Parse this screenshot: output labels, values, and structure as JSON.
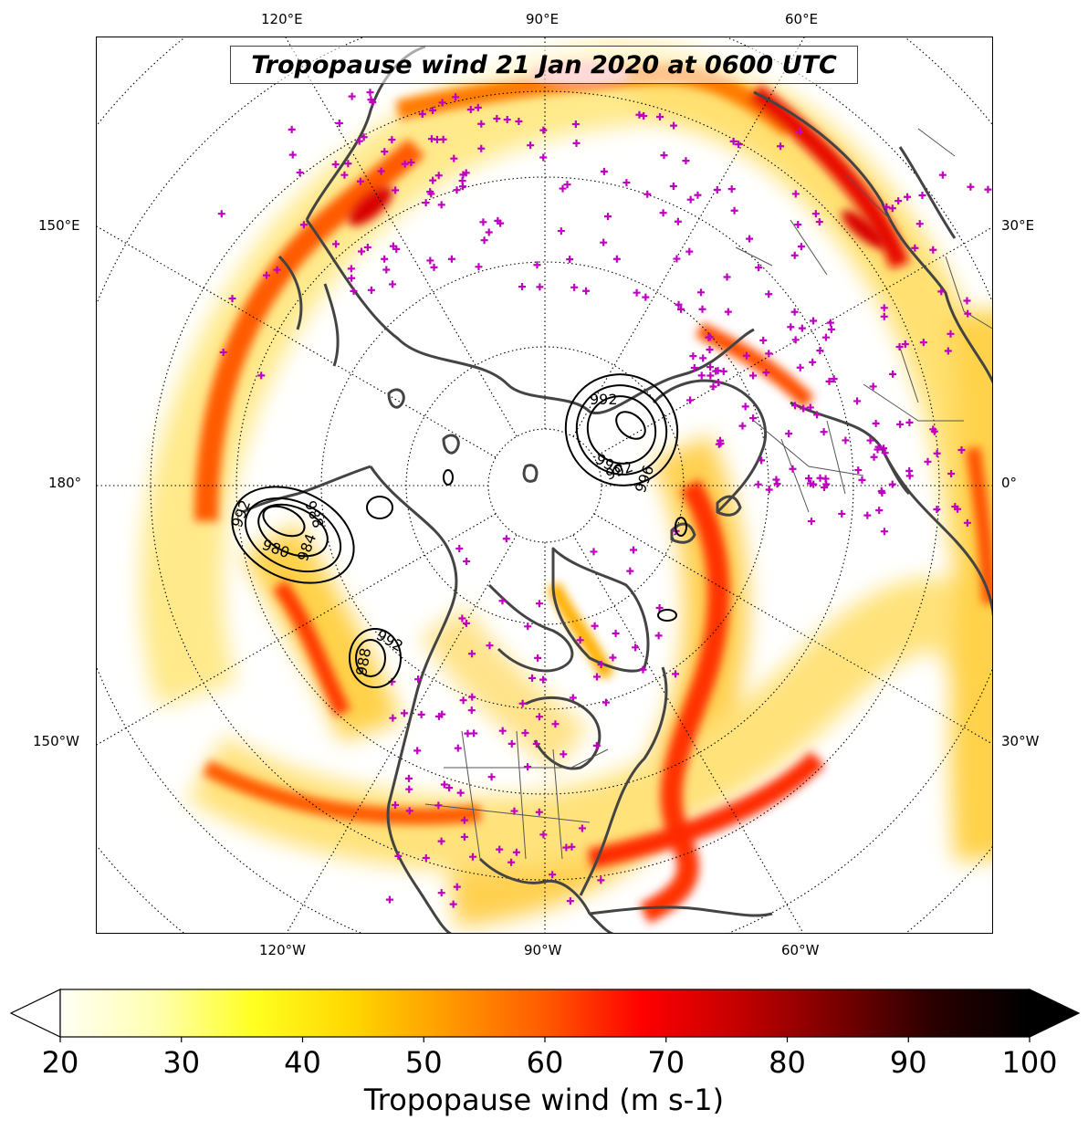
{
  "title": "Tropopause wind 21 Jan 2020 at 0600 UTC",
  "lon_labels": {
    "top": [
      "120°E",
      "90°E",
      "60°E"
    ],
    "bottom": [
      "120°W",
      "90°W",
      "60°W"
    ],
    "left": [
      "150°E",
      "180°",
      "150°W"
    ],
    "right": [
      "30°E",
      "0°",
      "30°W"
    ]
  },
  "pressure_contours": [
    {
      "labels": [
        "992",
        "980",
        "984",
        "988"
      ]
    },
    {
      "labels": [
        "992",
        "988"
      ]
    },
    {
      "labels": [
        "992",
        "996",
        "992",
        "996"
      ]
    }
  ],
  "colorbar": {
    "label": "Tropopause wind (m s-1)",
    "min": 20,
    "max": 100,
    "ticks": [
      "20",
      "30",
      "40",
      "50",
      "60",
      "70",
      "80",
      "90",
      "100"
    ],
    "colors": [
      "#fffff6",
      "#ffffb0",
      "#ffff20",
      "#ffd700",
      "#ff9a00",
      "#ff5a00",
      "#ff0000",
      "#c40000",
      "#7a0000",
      "#2a0000",
      "#000000"
    ]
  },
  "colors": {
    "coast": "#444444",
    "stations": "#c000c0",
    "contours": "#000000"
  }
}
